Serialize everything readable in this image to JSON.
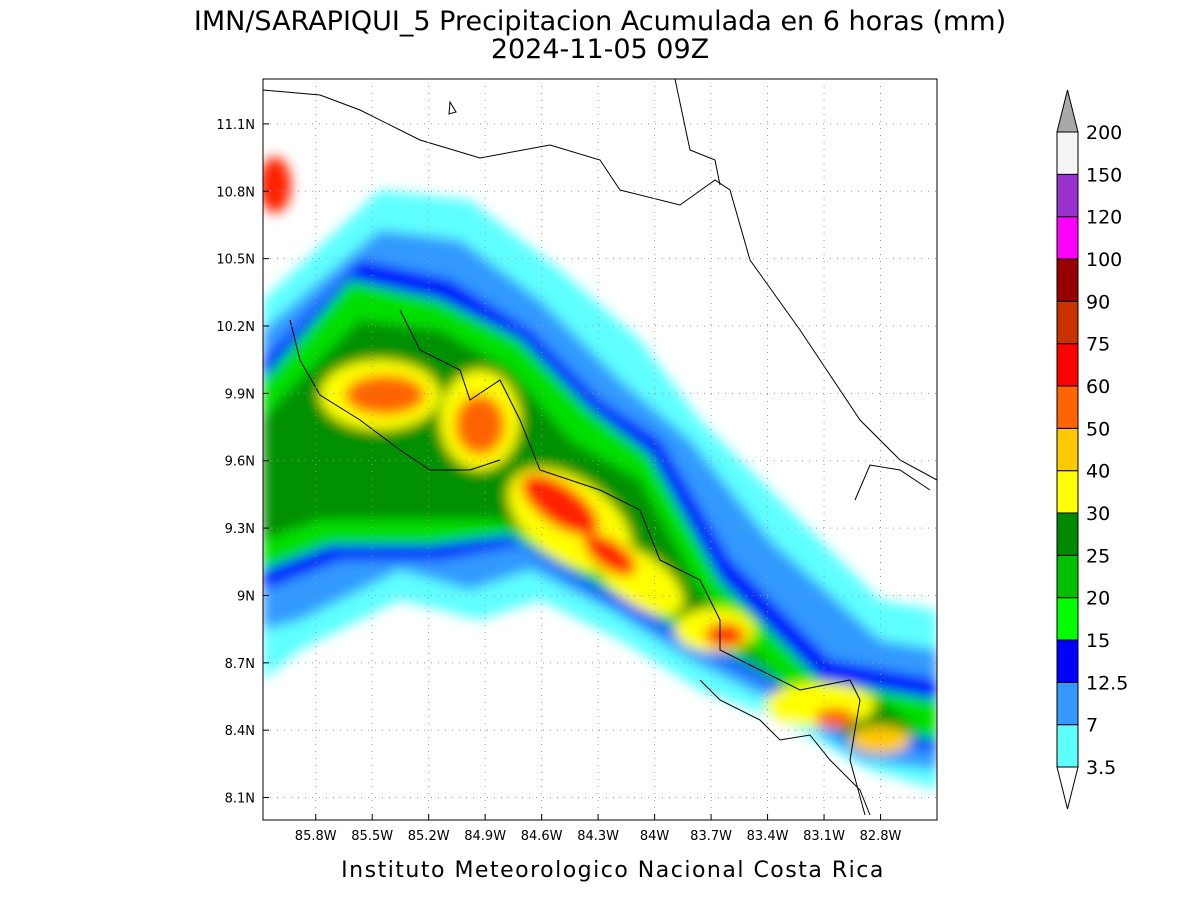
{
  "title": "IMN/SARAPIQUI_5 Precipitacion Acumulada en 6 horas (mm)",
  "subtitle": "2024-11-05 09Z",
  "footer": "Instituto Meteorologico Nacional Costa Rica",
  "map": {
    "xlim": [
      -86.08,
      -82.5
    ],
    "ylim": [
      8.0,
      11.3
    ],
    "grid": true,
    "xticks": [
      {
        "value": -85.8,
        "label": "85.8W"
      },
      {
        "value": -85.5,
        "label": "85.5W"
      },
      {
        "value": -85.2,
        "label": "85.2W"
      },
      {
        "value": -84.9,
        "label": "84.9W"
      },
      {
        "value": -84.6,
        "label": "84.6W"
      },
      {
        "value": -84.3,
        "label": "84.3W"
      },
      {
        "value": -84,
        "label": "84W"
      },
      {
        "value": -83.7,
        "label": "83.7W"
      },
      {
        "value": -83.4,
        "label": "83.4W"
      },
      {
        "value": -83.1,
        "label": "83.1W"
      },
      {
        "value": -82.8,
        "label": "82.8W"
      }
    ],
    "yticks": [
      {
        "value": 8.1,
        "label": "8.1N"
      },
      {
        "value": 8.4,
        "label": "8.4N"
      },
      {
        "value": 8.7,
        "label": "8.7N"
      },
      {
        "value": 9,
        "label": "9N"
      },
      {
        "value": 9.3,
        "label": "9.3N"
      },
      {
        "value": 9.6,
        "label": "9.6N"
      },
      {
        "value": 9.9,
        "label": "9.9N"
      },
      {
        "value": 10.2,
        "label": "10.2N"
      },
      {
        "value": 10.5,
        "label": "10.5N"
      },
      {
        "value": 10.8,
        "label": "10.8N"
      },
      {
        "value": 11.1,
        "label": "11.1N"
      }
    ]
  },
  "colorbar": {
    "levels": [
      3.5,
      7,
      12.5,
      15,
      20,
      25,
      30,
      40,
      50,
      60,
      75,
      90,
      100,
      120,
      150,
      200
    ],
    "colors": [
      "#5fffff",
      "#3399ff",
      "#0000ff",
      "#00ff00",
      "#00c000",
      "#008800",
      "#ffff00",
      "#ffc800",
      "#ff6400",
      "#ff0000",
      "#c83200",
      "#960000",
      "#ff00ff",
      "#9932cc",
      "#f5f5f5"
    ],
    "over_color": "#a9a9a9",
    "under_color": "#ffffff"
  }
}
